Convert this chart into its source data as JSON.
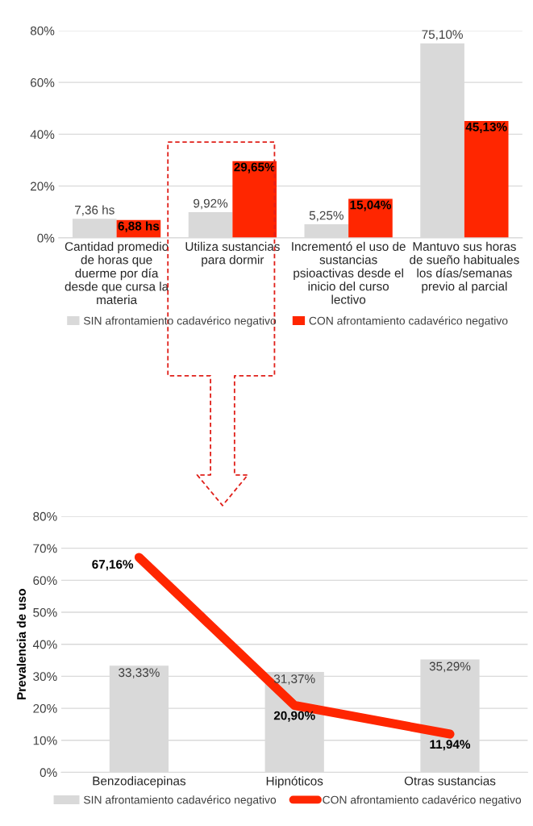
{
  "chart_data": [
    {
      "type": "bar",
      "categories": [
        "Cantidad promedio\nde horas que\nduerme por día\ndesde que cursa la\nmateria",
        "Utiliza sustancias\npara dormir",
        "Incrementó el uso de\nsustancias\npsioactivas desde el\ninicio del curso\nlectivo",
        "Mantuvo sus horas\nde sueño habituales\nlos días/semanas\nprevio al parcial"
      ],
      "series": [
        {
          "name": "SIN afrontamiento cadavérico negativo",
          "color": "#d9d9d9",
          "values": [
            7.36,
            9.92,
            5.25,
            75.1
          ],
          "value_labels": [
            "7,36 hs",
            "9,92%",
            "5,25%",
            "75,10%"
          ]
        },
        {
          "name": "CON afrontamiento cadavérico negativo",
          "color": "#ff2600",
          "values": [
            6.88,
            29.65,
            15.04,
            45.13
          ],
          "value_labels": [
            "6,88 hs",
            "29,65%",
            "15,04%",
            "45,13%"
          ]
        }
      ],
      "ylim": [
        0,
        80
      ],
      "yticks": [
        {
          "value": 0,
          "label": "0%"
        },
        {
          "value": 20,
          "label": "20%"
        },
        {
          "value": 40,
          "label": "40%"
        },
        {
          "value": 60,
          "label": "60%"
        },
        {
          "value": 80,
          "label": "80%"
        }
      ],
      "grid": "y",
      "legend": "bottom"
    },
    {
      "type": "bar",
      "categories": [
        "Benzodiacepinas",
        "Hipnóticos",
        "Otras sustancias"
      ],
      "ylabel": "Prevalencia de uso",
      "series": [
        {
          "name": "SIN afrontamiento cadavérico negativo",
          "type": "bar",
          "color": "#d9d9d9",
          "values": [
            33.33,
            31.37,
            35.29
          ],
          "value_labels": [
            "33,33%",
            "31,37%",
            "35,29%"
          ]
        },
        {
          "name": "CON afrontamiento cadavérico negativo",
          "type": "line",
          "color": "#ff2600",
          "values": [
            67.16,
            20.9,
            11.94
          ],
          "value_labels": [
            "67,16%",
            "20,90%",
            "11,94%"
          ]
        }
      ],
      "ylim": [
        0,
        80
      ],
      "yticks": [
        {
          "value": 0,
          "label": "0%"
        },
        {
          "value": 10,
          "label": "10%"
        },
        {
          "value": 20,
          "label": "20%"
        },
        {
          "value": 30,
          "label": "30%"
        },
        {
          "value": 40,
          "label": "40%"
        },
        {
          "value": 50,
          "label": "50%"
        },
        {
          "value": 60,
          "label": "60%"
        },
        {
          "value": 70,
          "label": "70%"
        },
        {
          "value": 80,
          "label": "80%"
        }
      ],
      "grid": "y",
      "legend": "bottom"
    }
  ]
}
